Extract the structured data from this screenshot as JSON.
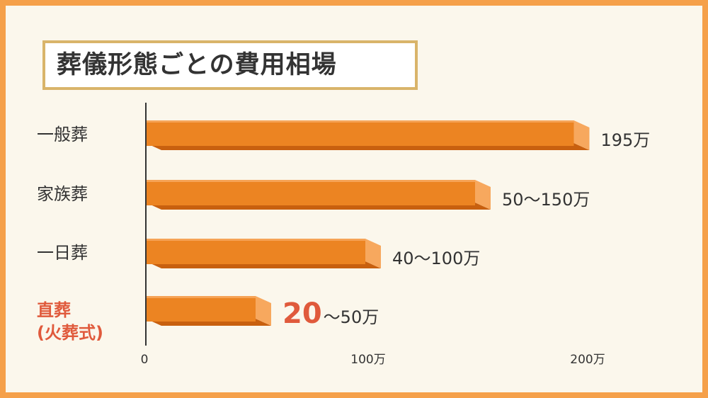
{
  "title": "葬儀形態ごとの費用相場",
  "chart_data": {
    "type": "bar",
    "orientation": "horizontal",
    "categories": [
      {
        "label": "一般葬",
        "sub": "",
        "highlight": false
      },
      {
        "label": "家族葬",
        "sub": "",
        "highlight": false
      },
      {
        "label": "一日葬",
        "sub": "",
        "highlight": false
      },
      {
        "label": "直葬",
        "sub": "(火葬式)",
        "highlight": true
      }
    ],
    "values": [
      195,
      150,
      100,
      50
    ],
    "value_labels": [
      {
        "prefix": "195万",
        "suffix": ""
      },
      {
        "prefix": "50〜150万",
        "suffix": ""
      },
      {
        "prefix": "40〜100万",
        "suffix": ""
      },
      {
        "prefix": "20",
        "suffix": "〜50万"
      }
    ],
    "x_ticks": [
      {
        "value": 0,
        "label": "0"
      },
      {
        "value": 100,
        "label": "100万"
      },
      {
        "value": 200,
        "label": "200万"
      }
    ],
    "xlim": [
      0,
      200
    ],
    "colors": {
      "bar_front": "#ec8422",
      "bar_top": "#f6a356",
      "bar_bottom": "#c8600f",
      "bar_end": "#f7a85e",
      "highlight": "#e05a3c"
    },
    "grid": false
  }
}
